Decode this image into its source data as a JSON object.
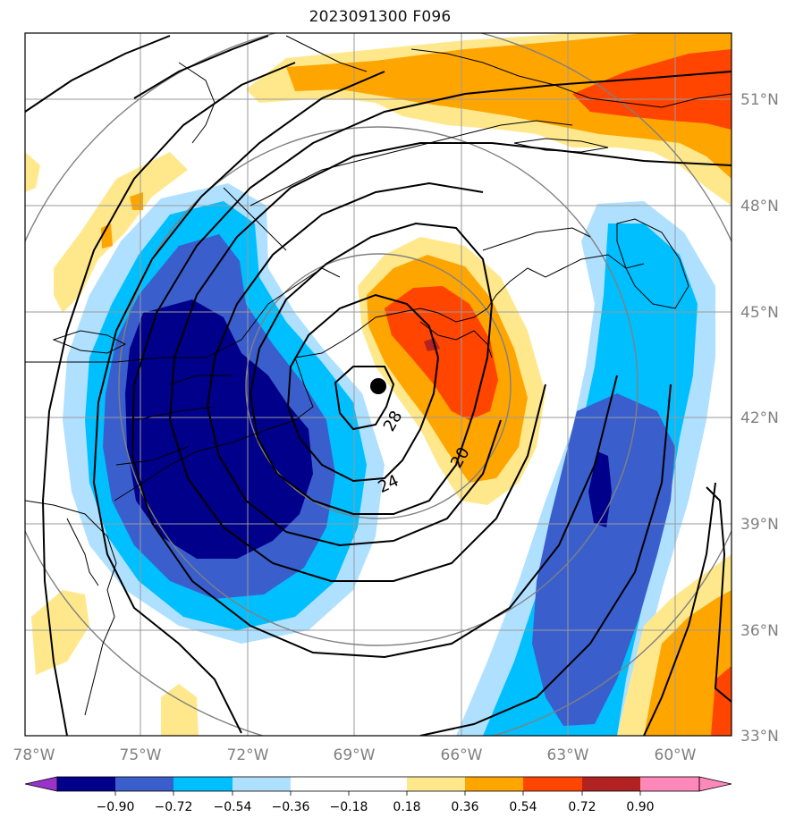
{
  "title": "2023091300 F096",
  "map": {
    "lat_labels": [
      "51°N",
      "48°N",
      "45°N",
      "42°N",
      "39°N",
      "36°N",
      "33°N"
    ],
    "lon_labels": [
      "78°W",
      "75°W",
      "72°W",
      "69°W",
      "66°W",
      "63°W",
      "60°W"
    ],
    "grid": true,
    "low_center_marker": "filled-black-dot",
    "contour_labels": [
      "28",
      "24",
      "20"
    ],
    "colors": {
      "deep_negative": "#00008b",
      "strong_negative": "#3a5fcd",
      "moderate_negative": "#00bfff",
      "weak_negative": "#b0e0ff",
      "neutral": "#ffffff",
      "weak_positive": "#ffe88c",
      "moderate_positive": "#ffa500",
      "strong_positive": "#ff4500",
      "very_strong_positive": "#b22222",
      "extreme_positive": "#ff88bb",
      "below_min": "#9933cc",
      "contour": "#000000",
      "grid_lines": "#9a9a9a",
      "range_rings": "#808080",
      "axis_labels": "#808080"
    }
  },
  "colorbar": {
    "ticks": [
      "−0.90",
      "−0.72",
      "−0.54",
      "−0.36",
      "−0.18",
      "0.18",
      "0.36",
      "0.54",
      "0.72",
      "0.90"
    ],
    "segments": [
      "#00008b",
      "#3a5fcd",
      "#00bfff",
      "#b0e0ff",
      "#ffffff",
      "#ffe88c",
      "#ffa500",
      "#ff4500",
      "#b22222"
    ],
    "under_color": "#9933cc",
    "over_color": "#ff88bb"
  }
}
